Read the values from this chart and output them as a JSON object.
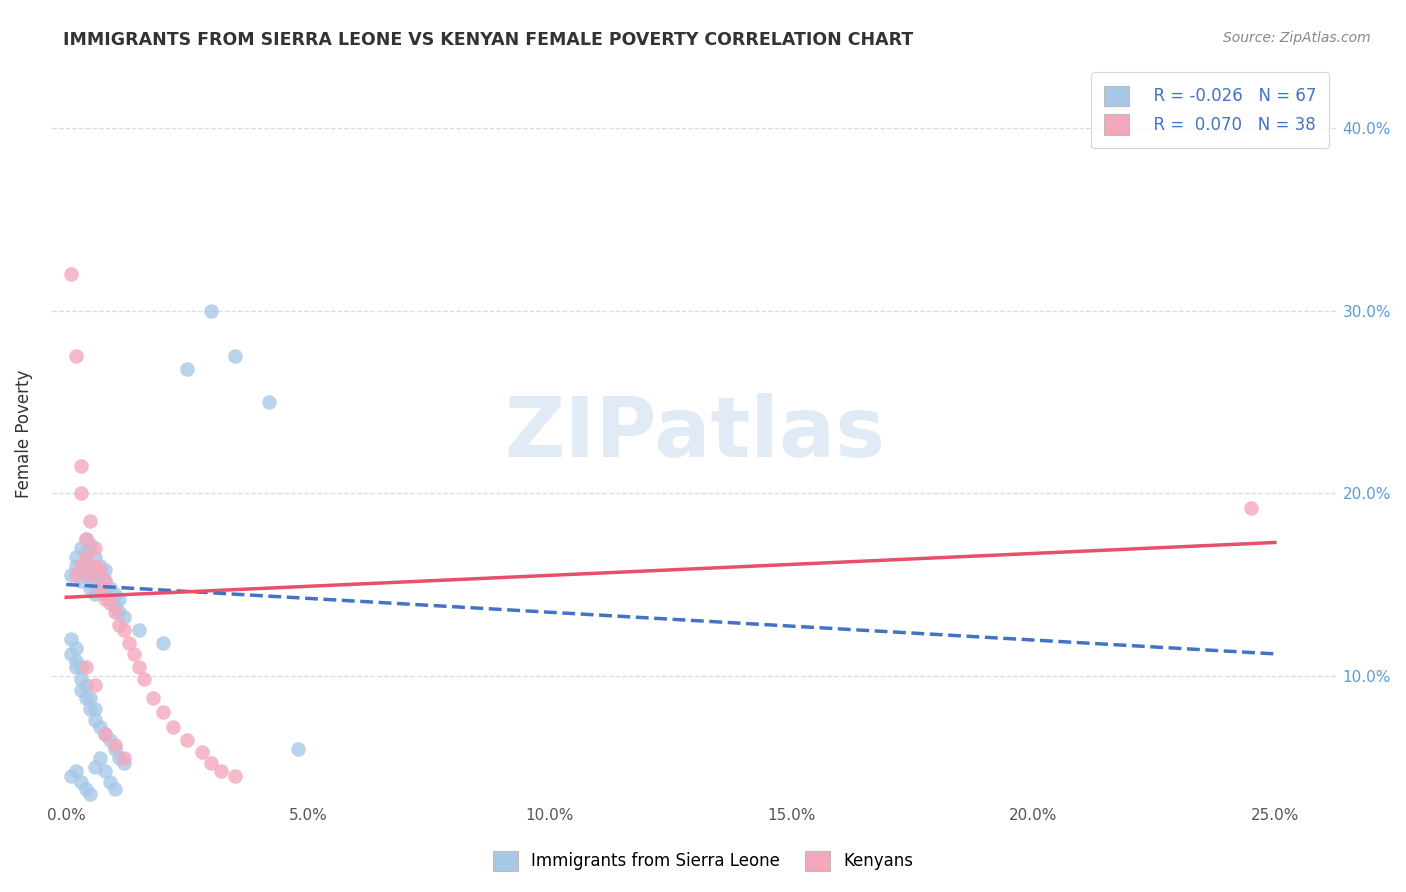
{
  "title": "IMMIGRANTS FROM SIERRA LEONE VS KENYAN FEMALE POVERTY CORRELATION CHART",
  "source_text": "Source: ZipAtlas.com",
  "xlabel": "",
  "ylabel": "Female Poverty",
  "x_ticks": [
    0.0,
    0.05,
    0.1,
    0.15,
    0.2,
    0.25
  ],
  "x_tick_labels": [
    "0.0%",
    "5.0%",
    "10.0%",
    "15.0%",
    "20.0%",
    "25.0%"
  ],
  "y_ticks": [
    0.1,
    0.2,
    0.3,
    0.4
  ],
  "y_tick_labels": [
    "10.0%",
    "20.0%",
    "30.0%",
    "40.0%"
  ],
  "xlim": [
    -0.003,
    0.263
  ],
  "ylim": [
    0.03,
    0.435
  ],
  "blue_color": "#A8C8E8",
  "pink_color": "#F4A8BC",
  "blue_line_color": "#4472C4",
  "pink_line_color": "#E8506A",
  "legend_R1": "R = -0.026",
  "legend_N1": "N = 67",
  "legend_R2": "R =  0.070",
  "legend_N2": "N = 38",
  "watermark": "ZIPatlas",
  "legend_label1": "Immigrants from Sierra Leone",
  "legend_label2": "Kenyans",
  "blue_scatter_x": [
    0.001,
    0.002,
    0.002,
    0.003,
    0.003,
    0.003,
    0.004,
    0.004,
    0.004,
    0.004,
    0.005,
    0.005,
    0.005,
    0.005,
    0.006,
    0.006,
    0.006,
    0.007,
    0.007,
    0.007,
    0.008,
    0.008,
    0.008,
    0.009,
    0.009,
    0.01,
    0.01,
    0.011,
    0.011,
    0.012,
    0.001,
    0.001,
    0.002,
    0.002,
    0.002,
    0.003,
    0.003,
    0.003,
    0.004,
    0.004,
    0.005,
    0.005,
    0.006,
    0.006,
    0.007,
    0.008,
    0.009,
    0.01,
    0.011,
    0.012,
    0.001,
    0.002,
    0.003,
    0.004,
    0.005,
    0.006,
    0.007,
    0.008,
    0.009,
    0.01,
    0.015,
    0.02,
    0.025,
    0.03,
    0.035,
    0.042,
    0.048
  ],
  "blue_scatter_y": [
    0.155,
    0.16,
    0.165,
    0.158,
    0.152,
    0.17,
    0.162,
    0.175,
    0.155,
    0.168,
    0.148,
    0.155,
    0.172,
    0.16,
    0.15,
    0.165,
    0.145,
    0.155,
    0.16,
    0.148,
    0.145,
    0.152,
    0.158,
    0.142,
    0.148,
    0.138,
    0.145,
    0.135,
    0.142,
    0.132,
    0.12,
    0.112,
    0.108,
    0.115,
    0.105,
    0.098,
    0.092,
    0.105,
    0.088,
    0.095,
    0.082,
    0.088,
    0.076,
    0.082,
    0.072,
    0.068,
    0.065,
    0.06,
    0.055,
    0.052,
    0.045,
    0.048,
    0.042,
    0.038,
    0.035,
    0.05,
    0.055,
    0.048,
    0.042,
    0.038,
    0.125,
    0.118,
    0.268,
    0.3,
    0.275,
    0.25,
    0.06
  ],
  "pink_scatter_x": [
    0.001,
    0.002,
    0.003,
    0.003,
    0.004,
    0.004,
    0.005,
    0.005,
    0.006,
    0.006,
    0.007,
    0.007,
    0.008,
    0.008,
    0.009,
    0.01,
    0.011,
    0.012,
    0.013,
    0.014,
    0.015,
    0.016,
    0.018,
    0.02,
    0.022,
    0.025,
    0.028,
    0.03,
    0.032,
    0.035,
    0.002,
    0.003,
    0.004,
    0.006,
    0.008,
    0.01,
    0.012,
    0.245
  ],
  "pink_scatter_y": [
    0.32,
    0.155,
    0.16,
    0.2,
    0.165,
    0.175,
    0.155,
    0.185,
    0.17,
    0.16,
    0.148,
    0.158,
    0.142,
    0.152,
    0.14,
    0.135,
    0.128,
    0.125,
    0.118,
    0.112,
    0.105,
    0.098,
    0.088,
    0.08,
    0.072,
    0.065,
    0.058,
    0.052,
    0.048,
    0.045,
    0.275,
    0.215,
    0.105,
    0.095,
    0.068,
    0.062,
    0.055,
    0.192
  ],
  "blue_line_x": [
    0.0,
    0.25
  ],
  "blue_line_y_start": 0.15,
  "blue_line_y_end": 0.112,
  "pink_line_x": [
    0.0,
    0.25
  ],
  "pink_line_y_start": 0.143,
  "pink_line_y_end": 0.173
}
